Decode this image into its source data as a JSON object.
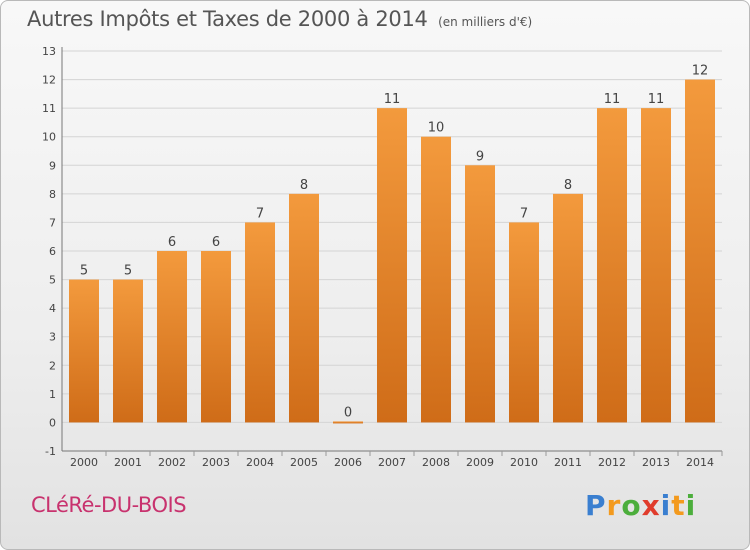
{
  "chart_data": {
    "type": "bar",
    "title": "Autres Impôts et Taxes de 2000 à 2014",
    "subtitle": "(en milliers d'€)",
    "xlabel": "",
    "ylabel": "",
    "categories": [
      "2000",
      "2001",
      "2002",
      "2003",
      "2004",
      "2005",
      "2006",
      "2007",
      "2008",
      "2009",
      "2010",
      "2011",
      "2012",
      "2013",
      "2014"
    ],
    "values": [
      5,
      5,
      6,
      6,
      7,
      8,
      0,
      11,
      10,
      9,
      7,
      8,
      11,
      11,
      12
    ],
    "ylim": [
      -1,
      13
    ],
    "yticks": [
      -1,
      0,
      1,
      2,
      3,
      4,
      5,
      6,
      7,
      8,
      9,
      10,
      11,
      12,
      13
    ],
    "grid": true,
    "bar_color": "#f39a3d",
    "bar_color_dark": "#cf6c18"
  },
  "footer": {
    "commune": "CLéRé-DU-BOIS",
    "logo_letters": [
      {
        "ch": "P",
        "color": "#3a7fd0"
      },
      {
        "ch": "r",
        "color": "#f39a1e"
      },
      {
        "ch": "o",
        "color": "#4cae3c"
      },
      {
        "ch": "x",
        "color": "#e03c2c"
      },
      {
        "ch": "i",
        "color": "#3a7fd0"
      },
      {
        "ch": "t",
        "color": "#f39a1e"
      },
      {
        "ch": "i",
        "color": "#4cae3c"
      }
    ]
  }
}
